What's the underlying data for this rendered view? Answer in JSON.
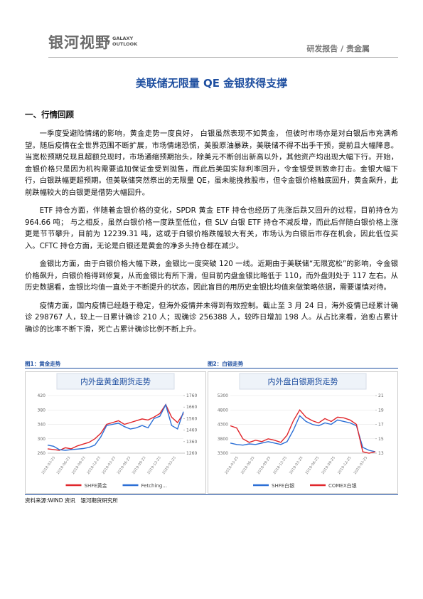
{
  "header": {
    "logo": "银河视野",
    "logo_en": [
      "GALAXY",
      "OUTLOOK"
    ],
    "category": "研发报告 / 贵金属"
  },
  "title": "美联储无限量 QE 金银获得支撑",
  "section": "一、行情回顾",
  "paragraphs": [
    "一季度受避险情绪的影响，黄金走势一度良好， 白银虽然表现不如黄金， 但彼时市场亦是对白银后市充满希望。随后疫情在全世界范围不断扩展，市场情绪恐慌，美股原油暴跌，美联储不得不出手干预，提前且大幅降息。当宽松预期兑现且超额兑现时，市场通缩预期抬头，除美元不断创出新高以外，其他资产均出现大幅下行。开始，金银价格只是因为机构需要追加保证金受到抛售，而此后美国实际利率回升，令金银受到致命打击。金银大幅下行，白银跌幅更超预期。但美联储突然祭出的无限量 QE，虽未能挽救股市，但令金银价格触底回升，黄金飙升，此前跌幅较大的白银更是借势大幅回升。",
    "ETF 持仓方面，伴随着金银价格的变化，SPDR 黄金 ETF 持仓也经历了先涨后跌又回升的过程，目前持仓为 964.66 吨； 与之相反，虽然白银价格一度跌至低位，但 SLV 白银 ETF 持仓不减反增，而此后伴随白银价格上涨更是节节攀升，目前为 12239.31 吨，这或于白银价格跌幅较大有关，市场认为白银后市存在机会，因此低位买入。CFTC 持仓方面，无论是白银还是黄金的净多头持仓都在减少。",
    "金银比方面，由于白银价格大幅下跌，金银比一度突破 120 一线。近期由于美联储“无限宽松”的影响，令金银价格飙升，白银价格得到修复，从而金银比有所下滑，但目前内盘金银比略低于 110，而外盘则处于 117 左右。从历史数据看，金银比均值一直处于不断提升的状态，因此盲目的用历史金银比均值来做策略依据，需要谨慎对待。",
    "疫情方面，国内疫情已经趋于稳定，但海外疫情并未得到有效控制。截止至 3 月 24 日，海外疫情已经累计确诊 298767 人，较上一日累计确诊 210 人；现确诊 256388 人，较昨日增加 198 人。从占比来看，治愈占累计确诊的比率不断下滑，死亡占累计确诊比例不断上升。"
  ],
  "charts": [
    {
      "caption": "图1：黄金走势",
      "chart_data": {
        "type": "line",
        "title": "内外盘黄金期货走势",
        "xticks": [
          "2018-03-23",
          "2018-06-23",
          "2018-09-23",
          "2018-12-23",
          "2019-03-23",
          "2019-06-23",
          "2019-09-23",
          "2019-12-23",
          "2020-03-23"
        ],
        "ylim": [
          260,
          420
        ],
        "yticks": [
          260,
          300,
          340,
          380,
          420
        ],
        "y2lim": [
          1260,
          1760
        ],
        "y2ticks": [
          1260,
          1360,
          1460,
          1560,
          1660,
          1760
        ],
        "grid": true,
        "series": [
          {
            "name": "SHFE黄金",
            "color": "#e0262b",
            "values": [
              272,
              270,
              268,
              275,
              272,
              280,
              285,
              290,
              300,
              315,
              340,
              345,
              350,
              340,
              345,
              350,
              355,
              352,
              360,
              370,
              395,
              360,
              345,
              370
            ]
          },
          {
            "name": "Fetching...",
            "color": "#2b6fd6",
            "axis": "y2",
            "values": [
              1330,
              1320,
              1290,
              1285,
              1290,
              1295,
              1300,
              1310,
              1330,
              1400,
              1500,
              1510,
              1520,
              1490,
              1470,
              1480,
              1500,
              1480,
              1560,
              1580,
              1680,
              1500,
              1470,
              1620
            ]
          }
        ]
      }
    },
    {
      "caption": "图2：白银走势",
      "chart_data": {
        "type": "line",
        "title": "内外盘白银期货走势",
        "xticks": [
          "2018-03-25",
          "2018-06-25",
          "2018-09-25",
          "2018-12-25",
          "2019-03-25",
          "2019-06-25",
          "2019-09-25",
          "2019-12-25",
          "2020-03-25"
        ],
        "ylim": [
          3300,
          5300
        ],
        "yticks": [
          3300,
          3800,
          4300,
          4800,
          5300
        ],
        "y2lim": [
          13,
          21
        ],
        "y2ticks": [
          13,
          15,
          17,
          19,
          21
        ],
        "grid": true,
        "series": [
          {
            "name": "SHFE白银",
            "color": "#2b6fd6",
            "values": [
              3650,
              3600,
              3580,
              3620,
              3600,
              3650,
              3700,
              3650,
              3600,
              3700,
              4100,
              4600,
              4400,
              4300,
              4250,
              4350,
              4300,
              4450,
              4400,
              4350,
              4250,
              3500,
              3400,
              3350
            ]
          },
          {
            "name": "COMEX白银",
            "color": "#e0262b",
            "axis": "y2",
            "values": [
              16.8,
              16.5,
              15.0,
              14.5,
              14.8,
              14.6,
              15.0,
              14.8,
              14.5,
              15.5,
              17.5,
              19.0,
              18.0,
              17.5,
              17.2,
              17.8,
              17.4,
              18.0,
              17.9,
              17.6,
              17.0,
              13.2,
              13.0,
              13.2
            ]
          }
        ]
      }
    }
  ],
  "source": "资料来源:WIND 资讯　银河期货研究所"
}
